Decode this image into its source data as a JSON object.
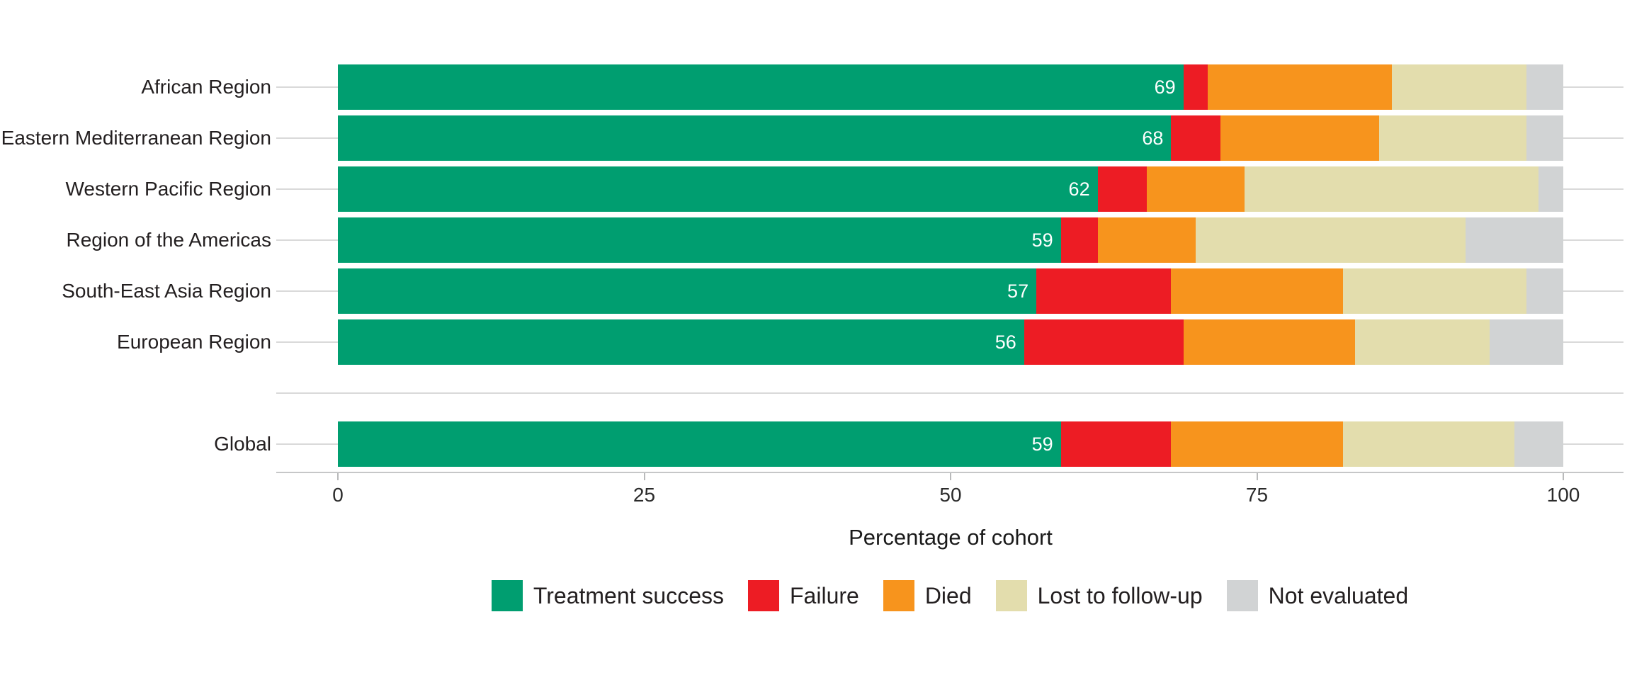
{
  "chart_data": {
    "type": "bar",
    "orientation": "horizontal",
    "stacked": true,
    "unit": "percent of cohort",
    "title": "",
    "xlabel": "Percentage of cohort",
    "ylabel": "",
    "xlim": [
      0,
      100
    ],
    "x_ticks": [
      0,
      25,
      50,
      75,
      100
    ],
    "grid": true,
    "legend_position": "bottom",
    "categories": [
      "African Region",
      "Eastern Mediterranean Region",
      "Western Pacific Region",
      "Region of the Americas",
      "South-East Asia Region",
      "European Region",
      "Global"
    ],
    "group_gap_after_index": 5,
    "series": [
      {
        "name": "Treatment success",
        "color": "#009E70",
        "values": [
          69,
          68,
          62,
          59,
          57,
          56,
          59
        ]
      },
      {
        "name": "Failure",
        "color": "#ED1C24",
        "values": [
          2,
          4,
          4,
          3,
          11,
          13,
          9
        ]
      },
      {
        "name": "Died",
        "color": "#F7941D",
        "values": [
          15,
          13,
          8,
          8,
          14,
          14,
          14
        ]
      },
      {
        "name": "Lost to follow-up",
        "color": "#E3DDAD",
        "values": [
          11,
          12,
          24,
          22,
          15,
          11,
          14
        ]
      },
      {
        "name": "Not evaluated",
        "color": "#D1D3D4",
        "values": [
          3,
          3,
          2,
          8,
          3,
          6,
          4
        ]
      }
    ],
    "bar_value_labels": {
      "series": "Treatment success",
      "color": "#FFFFFF",
      "values": [
        69,
        68,
        62,
        59,
        57,
        56,
        59
      ]
    }
  },
  "style": {
    "background": "#FFFFFF",
    "grid_color": "#D9D9D9",
    "axis_line_color": "#C6C7C8",
    "tick_mark_color": "#B9BABB",
    "tick_label_color": "#2B2B2B",
    "label_text_color": "#231F20",
    "axis_title_color": "#1A1A1A"
  }
}
